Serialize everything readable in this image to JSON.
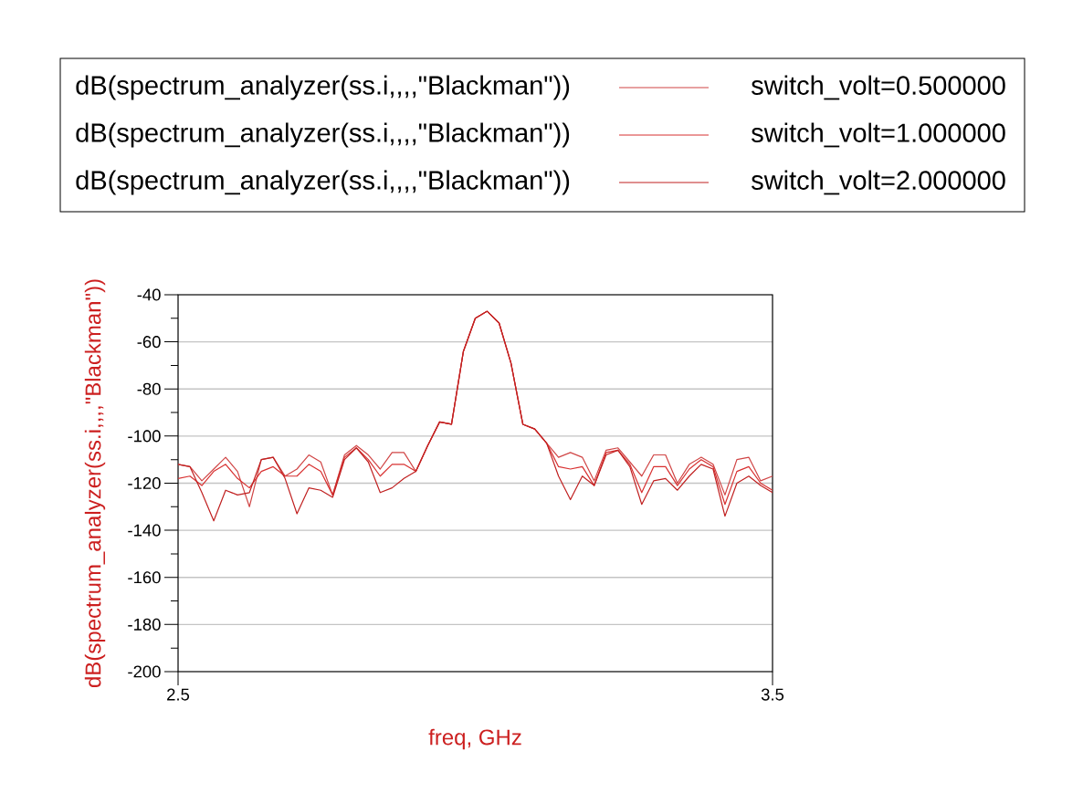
{
  "chart_data": {
    "type": "line",
    "xlabel": "freq, GHz",
    "ylabel": "dB(spectrum_analyzer(ss.i,,,,\"Blackman\"))",
    "x": [
      2.5,
      2.52,
      2.54,
      2.56,
      2.58,
      2.6,
      2.62,
      2.64,
      2.66,
      2.68,
      2.7,
      2.72,
      2.74,
      2.76,
      2.78,
      2.8,
      2.82,
      2.84,
      2.86,
      2.88,
      2.9,
      2.92,
      2.94,
      2.96,
      2.98,
      3.0,
      3.02,
      3.04,
      3.06,
      3.08,
      3.1,
      3.12,
      3.14,
      3.16,
      3.18,
      3.2,
      3.22,
      3.24,
      3.26,
      3.28,
      3.3,
      3.32,
      3.34,
      3.36,
      3.38,
      3.4,
      3.42,
      3.44,
      3.46,
      3.48,
      3.5
    ],
    "series": [
      {
        "name": "switch_volt=0.500000",
        "color": "#d04545",
        "values": [
          -112,
          -113,
          -119,
          -114,
          -109,
          -115,
          -130,
          -110,
          -109,
          -117,
          -114,
          -108,
          -111,
          -125,
          -108,
          -104,
          -108,
          -114,
          -107,
          -107,
          -115,
          -104,
          -94,
          -95,
          -64,
          -50,
          -47,
          -52,
          -69,
          -95,
          -97,
          -103,
          -109,
          -107,
          -109,
          -119,
          -106,
          -105,
          -111,
          -117,
          -108,
          -108,
          -120,
          -112,
          -109,
          -112,
          -125,
          -110,
          -109,
          -119,
          -117
        ]
      },
      {
        "name": "switch_volt=1.000000",
        "color": "#d83030",
        "values": [
          -118,
          -117,
          -121,
          -115,
          -112,
          -118,
          -122,
          -115,
          -113,
          -117,
          -117,
          -112,
          -115,
          -125,
          -109,
          -105,
          -110,
          -117,
          -112,
          -112,
          -115,
          -104,
          -94,
          -95,
          -64,
          -50,
          -47,
          -52,
          -69,
          -95,
          -97,
          -103,
          -113,
          -114,
          -113,
          -121,
          -107,
          -106,
          -112,
          -124,
          -113,
          -113,
          -121,
          -114,
          -110,
          -113,
          -129,
          -115,
          -113,
          -120,
          -123
        ]
      },
      {
        "name": "switch_volt=2.000000",
        "color": "#c02020",
        "values": [
          -112,
          -113,
          -124,
          -136,
          -123,
          -125,
          -124,
          -110,
          -109,
          -118,
          -133,
          -122,
          -123,
          -126,
          -110,
          -105,
          -111,
          -124,
          -122,
          -118,
          -115,
          -104,
          -94,
          -95,
          -64,
          -50,
          -47,
          -52,
          -69,
          -95,
          -97,
          -103,
          -117,
          -127,
          -117,
          -121,
          -108,
          -106,
          -113,
          -129,
          -119,
          -118,
          -123,
          -117,
          -112,
          -114,
          -134,
          -120,
          -117,
          -121,
          -124
        ]
      }
    ],
    "xlim": [
      2.5,
      3.5
    ],
    "ylim": [
      -200,
      -40
    ],
    "xticks": [
      2.5,
      3.5
    ],
    "yticks": [
      -200,
      {
        "value": -190,
        "label": null
      },
      -180,
      {
        "value": -170,
        "label": null
      },
      -160,
      {
        "value": -150,
        "label": null
      },
      -140,
      {
        "value": -130,
        "label": null
      },
      -120,
      {
        "value": -110,
        "label": null
      },
      -100,
      {
        "value": -90,
        "label": null
      },
      -80,
      {
        "value": -70,
        "label": null
      },
      -60,
      {
        "value": -50,
        "label": null
      },
      -40
    ],
    "grid": "y",
    "legend": "top"
  }
}
